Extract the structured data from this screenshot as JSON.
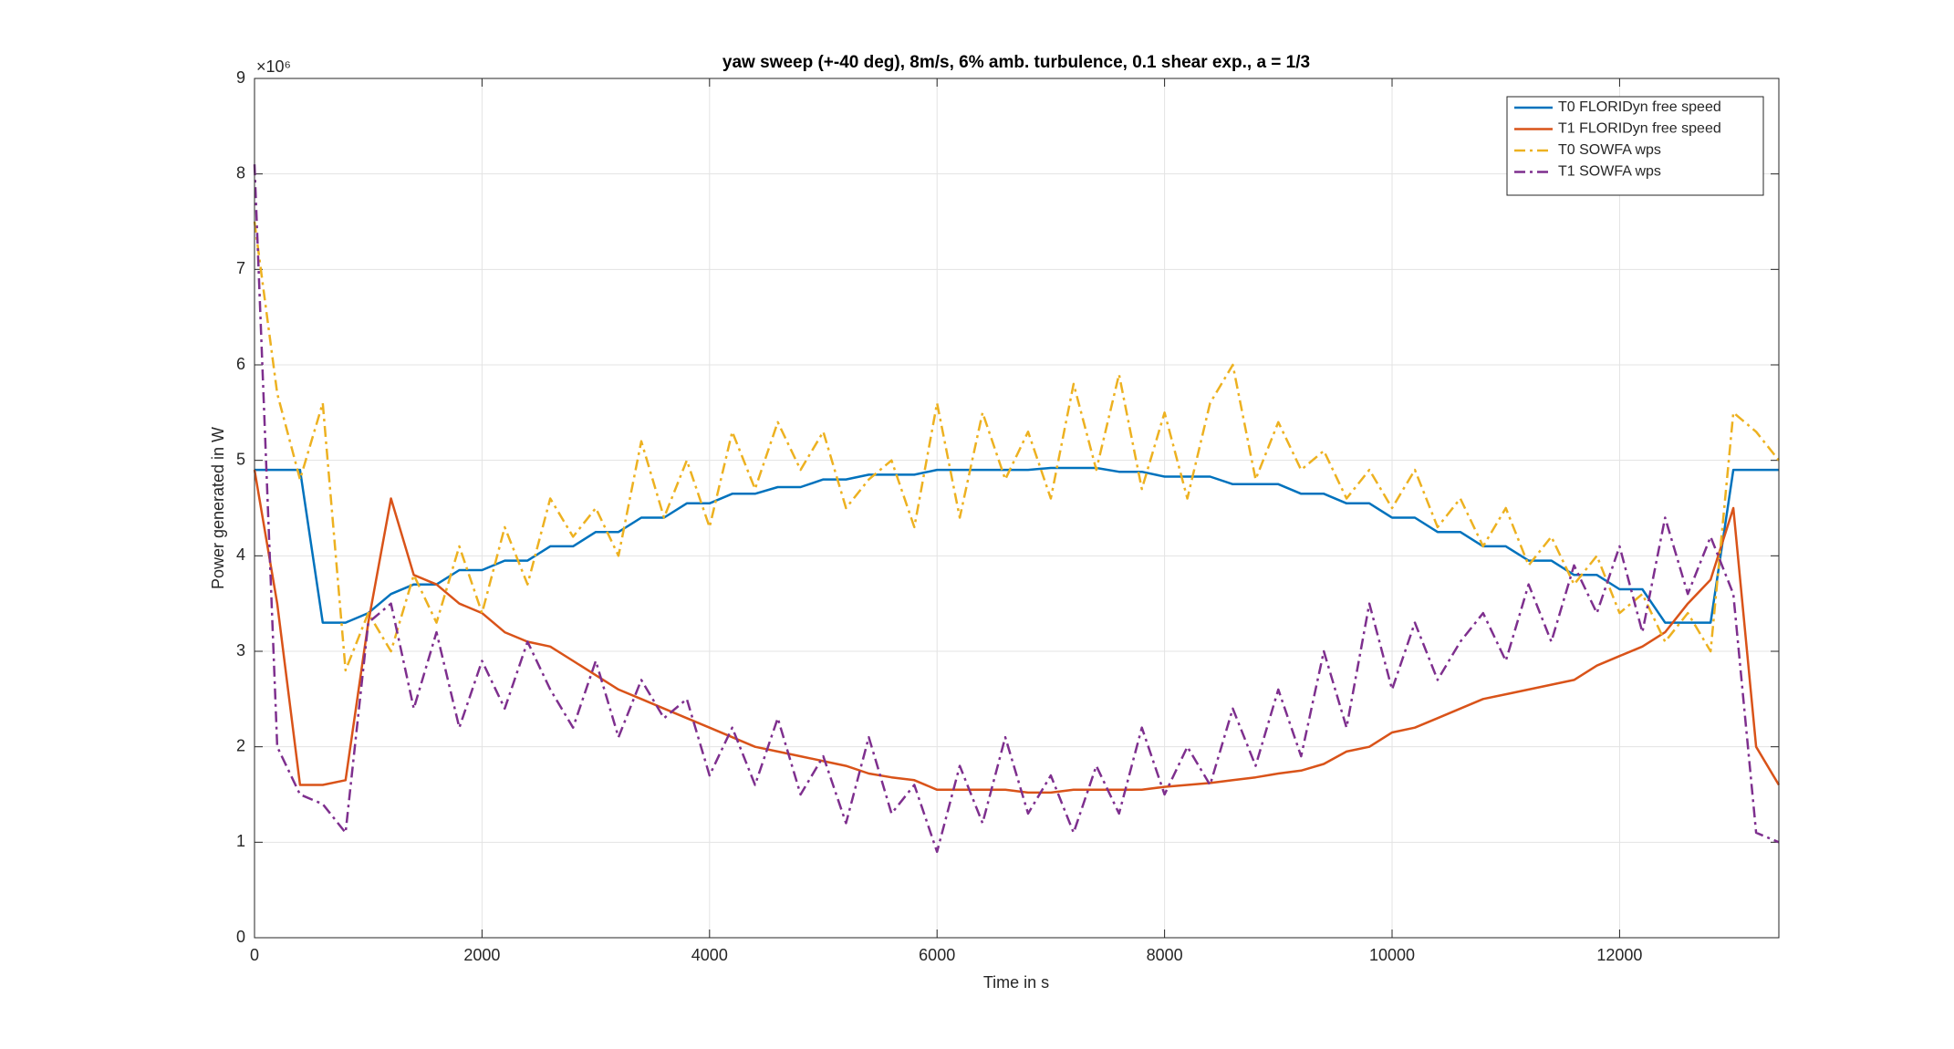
{
  "chart_data": {
    "type": "line",
    "title": "yaw sweep (+-40 deg), 8m/s, 6% amb. turbulence, 0.1 shear exp., a = 1/3",
    "x_label": "Time in s",
    "y_label": "Power generated in W",
    "y_exponent": "×10⁶",
    "x": [
      0,
      200,
      400,
      600,
      800,
      1000,
      1200,
      1400,
      1600,
      1800,
      2000,
      2200,
      2400,
      2600,
      2800,
      3000,
      3200,
      3400,
      3600,
      3800,
      4000,
      4200,
      4400,
      4600,
      4800,
      5000,
      5200,
      5400,
      5600,
      5800,
      6000,
      6200,
      6400,
      6600,
      6800,
      7000,
      7200,
      7400,
      7600,
      7800,
      8000,
      8200,
      8400,
      8600,
      8800,
      9000,
      9200,
      9400,
      9600,
      9800,
      10000,
      10200,
      10400,
      10600,
      10800,
      11000,
      11200,
      11400,
      11600,
      11800,
      12000,
      12200,
      12400,
      12600,
      12800,
      13000,
      13200,
      13400
    ],
    "series": [
      {
        "name": "T0 FLORIDyn free speed",
        "color": "#0072BD",
        "style": "solid",
        "values": [
          4.9,
          4.9,
          4.9,
          3.3,
          3.3,
          3.4,
          3.6,
          3.7,
          3.7,
          3.85,
          3.85,
          3.95,
          3.95,
          4.1,
          4.1,
          4.25,
          4.25,
          4.4,
          4.4,
          4.55,
          4.55,
          4.65,
          4.65,
          4.72,
          4.72,
          4.8,
          4.8,
          4.85,
          4.85,
          4.85,
          4.9,
          4.9,
          4.9,
          4.9,
          4.9,
          4.92,
          4.92,
          4.92,
          4.88,
          4.88,
          4.83,
          4.83,
          4.83,
          4.75,
          4.75,
          4.75,
          4.65,
          4.65,
          4.55,
          4.55,
          4.4,
          4.4,
          4.25,
          4.25,
          4.1,
          4.1,
          3.95,
          3.95,
          3.8,
          3.8,
          3.65,
          3.65,
          3.3,
          3.3,
          3.3,
          4.9,
          4.9,
          4.9
        ]
      },
      {
        "name": "T1 FLORIDyn free speed",
        "color": "#D95319",
        "style": "solid",
        "values": [
          4.9,
          3.5,
          1.6,
          1.6,
          1.65,
          3.3,
          4.6,
          3.8,
          3.7,
          3.5,
          3.4,
          3.2,
          3.1,
          3.05,
          2.9,
          2.75,
          2.6,
          2.5,
          2.4,
          2.3,
          2.2,
          2.1,
          2.0,
          1.95,
          1.9,
          1.85,
          1.8,
          1.72,
          1.68,
          1.65,
          1.55,
          1.55,
          1.55,
          1.55,
          1.52,
          1.52,
          1.55,
          1.55,
          1.55,
          1.55,
          1.58,
          1.6,
          1.62,
          1.65,
          1.68,
          1.72,
          1.75,
          1.82,
          1.95,
          2.0,
          2.15,
          2.2,
          2.3,
          2.4,
          2.5,
          2.55,
          2.6,
          2.65,
          2.7,
          2.85,
          2.95,
          3.05,
          3.2,
          3.5,
          3.75,
          4.5,
          2.0,
          1.6
        ]
      },
      {
        "name": "T0 SOWFA wps",
        "color": "#EDB120",
        "style": "dashdot",
        "values": [
          7.5,
          5.7,
          4.8,
          5.6,
          2.8,
          3.4,
          3.0,
          3.8,
          3.3,
          4.1,
          3.4,
          4.3,
          3.7,
          4.6,
          4.2,
          4.5,
          4.0,
          5.2,
          4.4,
          5.0,
          4.3,
          5.3,
          4.7,
          5.4,
          4.9,
          5.3,
          4.5,
          4.8,
          5.0,
          4.3,
          5.6,
          4.4,
          5.5,
          4.8,
          5.3,
          4.6,
          5.8,
          4.9,
          5.9,
          4.7,
          5.5,
          4.6,
          5.6,
          6.0,
          4.8,
          5.4,
          4.9,
          5.1,
          4.6,
          4.9,
          4.5,
          4.9,
          4.3,
          4.6,
          4.1,
          4.5,
          3.9,
          4.2,
          3.7,
          4.0,
          3.4,
          3.6,
          3.1,
          3.4,
          3.0,
          5.5,
          5.3,
          5.0
        ]
      },
      {
        "name": "T1 SOWFA wps",
        "color": "#7E2F8E",
        "style": "dashdot",
        "values": [
          8.1,
          2.0,
          1.5,
          1.4,
          1.1,
          3.3,
          3.5,
          2.4,
          3.2,
          2.2,
          2.9,
          2.4,
          3.1,
          2.6,
          2.2,
          2.9,
          2.1,
          2.7,
          2.3,
          2.5,
          1.7,
          2.2,
          1.6,
          2.3,
          1.5,
          1.9,
          1.2,
          2.1,
          1.3,
          1.6,
          0.9,
          1.8,
          1.2,
          2.1,
          1.3,
          1.7,
          1.1,
          1.8,
          1.3,
          2.2,
          1.5,
          2.0,
          1.6,
          2.4,
          1.8,
          2.6,
          1.9,
          3.0,
          2.2,
          3.5,
          2.6,
          3.3,
          2.7,
          3.1,
          3.4,
          2.9,
          3.7,
          3.1,
          3.9,
          3.4,
          4.1,
          3.2,
          4.4,
          3.6,
          4.2,
          3.6,
          1.1,
          1.0
        ]
      }
    ],
    "xlim": [
      0,
      13400
    ],
    "xticks": [
      0,
      2000,
      4000,
      6000,
      8000,
      10000,
      12000
    ],
    "ylim": [
      0,
      9
    ],
    "yticks": [
      0,
      1,
      2,
      3,
      4,
      5,
      6,
      7,
      8,
      9
    ],
    "grid": true,
    "legend": "top-right"
  }
}
